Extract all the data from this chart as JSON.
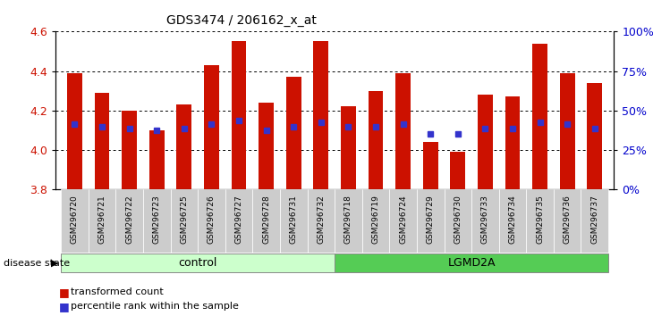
{
  "title": "GDS3474 / 206162_x_at",
  "samples": [
    "GSM296720",
    "GSM296721",
    "GSM296722",
    "GSM296723",
    "GSM296725",
    "GSM296726",
    "GSM296727",
    "GSM296728",
    "GSM296731",
    "GSM296732",
    "GSM296718",
    "GSM296719",
    "GSM296724",
    "GSM296729",
    "GSM296730",
    "GSM296733",
    "GSM296734",
    "GSM296735",
    "GSM296736",
    "GSM296737"
  ],
  "bar_values": [
    4.39,
    4.29,
    4.2,
    4.1,
    4.23,
    4.43,
    4.55,
    4.24,
    4.37,
    4.55,
    4.22,
    4.3,
    4.39,
    4.04,
    3.99,
    4.28,
    4.27,
    4.54,
    4.39,
    4.34
  ],
  "blue_marker_values": [
    4.13,
    4.12,
    4.11,
    4.1,
    4.11,
    4.13,
    4.15,
    4.1,
    4.12,
    4.14,
    4.12,
    4.12,
    4.13,
    4.08,
    4.08,
    4.11,
    4.11,
    4.14,
    4.13,
    4.11
  ],
  "n_control": 10,
  "n_lgmd": 10,
  "ymin": 3.8,
  "ymax": 4.6,
  "bar_color": "#CC1100",
  "blue_color": "#3333CC",
  "control_color": "#CCFFCC",
  "lgmd_color": "#55CC55",
  "label_color_left": "#CC1100",
  "label_color_right": "#0000CC",
  "legend_red": "transformed count",
  "legend_blue": "percentile rank within the sample",
  "disease_label": "disease state",
  "control_label": "control",
  "lgmd_label": "LGMD2A",
  "bar_width": 0.55,
  "right_ticks_pct": [
    0,
    25,
    50,
    75,
    100
  ]
}
